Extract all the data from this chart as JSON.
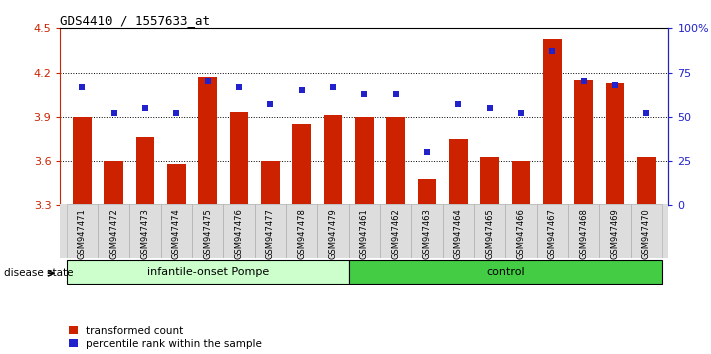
{
  "title": "GDS4410 / 1557633_at",
  "samples": [
    "GSM947471",
    "GSM947472",
    "GSM947473",
    "GSM947474",
    "GSM947475",
    "GSM947476",
    "GSM947477",
    "GSM947478",
    "GSM947479",
    "GSM947461",
    "GSM947462",
    "GSM947463",
    "GSM947464",
    "GSM947465",
    "GSM947466",
    "GSM947467",
    "GSM947468",
    "GSM947469",
    "GSM947470"
  ],
  "bar_values": [
    3.9,
    3.6,
    3.76,
    3.58,
    4.17,
    3.93,
    3.6,
    3.85,
    3.91,
    3.9,
    3.9,
    3.48,
    3.75,
    3.63,
    3.6,
    4.43,
    4.15,
    4.13,
    3.63
  ],
  "percentile_values": [
    67,
    52,
    55,
    52,
    70,
    67,
    57,
    65,
    67,
    63,
    63,
    30,
    57,
    55,
    52,
    87,
    70,
    68,
    52
  ],
  "ymin": 3.3,
  "ymax": 4.5,
  "y2min": 0,
  "y2max": 100,
  "yticks": [
    3.3,
    3.6,
    3.9,
    4.2,
    4.5
  ],
  "y2ticks": [
    0,
    25,
    50,
    75,
    100
  ],
  "bar_color": "#cc2200",
  "dot_color": "#2222cc",
  "group1_label": "infantile-onset Pompe",
  "group2_label": "control",
  "group1_color": "#ccffcc",
  "group2_color": "#44cc44",
  "group1_count": 9,
  "group2_count": 10,
  "disease_state_label": "disease state",
  "legend1": "transformed count",
  "legend2": "percentile rank within the sample",
  "left_color": "#cc2200",
  "right_color": "#2222cc",
  "bar_width": 0.6
}
